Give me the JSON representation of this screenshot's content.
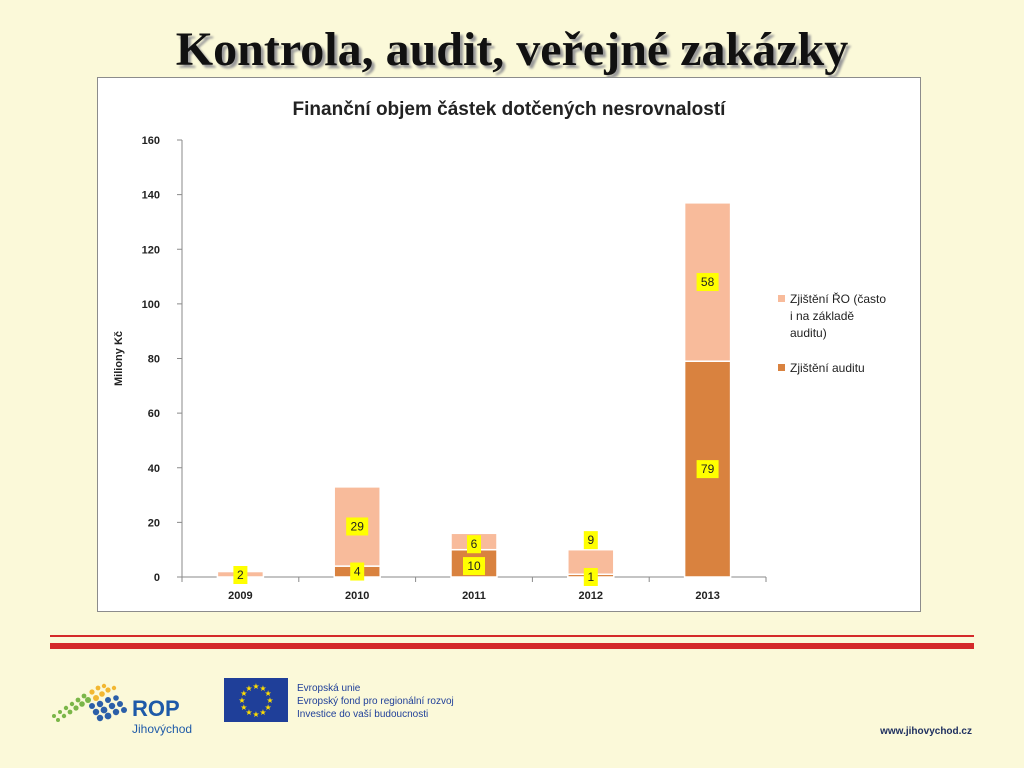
{
  "slide": {
    "title": "Kontrola, audit, veřejné zakázky"
  },
  "chart_data": {
    "type": "bar",
    "stacked": true,
    "title": "Finanční objem částek dotčených nesrovnalostí",
    "xlabel": "",
    "ylabel": "Miliony Kč",
    "ylim": [
      0,
      160
    ],
    "yticks": [
      "0",
      "20",
      "40",
      "60",
      "80",
      "100",
      "120",
      "140",
      "160"
    ],
    "categories": [
      "2009",
      "2010",
      "2011",
      "2012",
      "2013"
    ],
    "series": [
      {
        "name": "Zjištění auditu",
        "color": "#d9823f",
        "values": [
          0,
          4,
          10,
          1,
          79
        ],
        "labels": [
          "",
          "4",
          "10",
          "1",
          "79"
        ]
      },
      {
        "name": "Zjištění ŘO (často i na základě auditu)",
        "color": "#f8bb9b",
        "values": [
          2,
          29,
          6,
          9,
          58
        ],
        "labels": [
          "2",
          "29",
          "6",
          "9",
          "58"
        ]
      }
    ],
    "legend": {
      "position": "right",
      "entries": [
        "Zjištění ŘO (často i na základě auditu)",
        "Zjištění auditu"
      ]
    },
    "label_color": "#ffff00",
    "grid": false
  },
  "footer": {
    "rop_name": "ROP",
    "rop_region": "Jihovýchod",
    "eu_lines": [
      "Evropská unie",
      "Evropský fond pro regionální rozvoj",
      "Investice do vaší budoucnosti"
    ],
    "website": "www.jihovychod.cz",
    "accent_color": "#d42a2a"
  }
}
